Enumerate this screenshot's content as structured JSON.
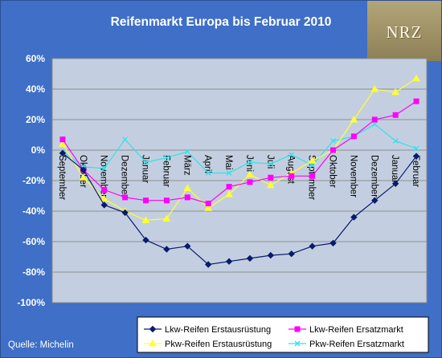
{
  "title": "Reifenmarkt Europa bis Februar 2010",
  "logo_text": "NRZ",
  "source": "Quelle: Michelin",
  "colors": {
    "background": "#3f6fc6",
    "plot_area": "#c3cfe0",
    "series": [
      "#0a1a6e",
      "#ff00ff",
      "#ffff33",
      "#33e0e8"
    ]
  },
  "chart_data": {
    "type": "line",
    "title": "Reifenmarkt Europa bis Februar 2010",
    "categories": [
      "September",
      "Oktober",
      "November",
      "Dezember",
      "Januar",
      "Februar",
      "März",
      "April",
      "Mai",
      "Juni",
      "Juli",
      "August",
      "September",
      "Oktober",
      "November",
      "Dezember",
      "Januar",
      "Februar"
    ],
    "y_ticks": [
      "60%",
      "40%",
      "20%",
      "0%",
      "-20%",
      "-40%",
      "-60%",
      "-80%",
      "-100%"
    ],
    "ylim": [
      -100,
      60
    ],
    "y_unit": "%",
    "grid": true,
    "legend_position": "bottom",
    "series": [
      {
        "name": "Lkw-Reifen Erstausrüstung",
        "marker": "diamond",
        "values": [
          -2,
          -13,
          -36,
          -41,
          -59,
          -65,
          -63,
          -75,
          -73,
          -71,
          -69,
          -68,
          -63,
          -61,
          -44,
          -33,
          -22,
          -4
        ]
      },
      {
        "name": "Lkw-Reifen Ersatzmarkt",
        "marker": "square",
        "values": [
          7,
          -13,
          -26,
          -31,
          -33,
          -33,
          -31,
          -35,
          -24,
          -21,
          -18,
          -17,
          -17,
          0,
          9,
          20,
          23,
          32
        ]
      },
      {
        "name": "Pkw-Reifen Erstausrüstung",
        "marker": "triangle",
        "values": [
          4,
          -18,
          -32,
          -40,
          -46,
          -45,
          -25,
          -38,
          -29,
          -16,
          -23,
          -15,
          -7,
          0,
          20,
          40,
          38,
          47
        ]
      },
      {
        "name": "Pkw-Reifen Ersatzmarkt",
        "marker": "x",
        "values": [
          -1,
          -11,
          -12,
          7,
          -8,
          -5,
          -1,
          -15,
          -15,
          -8,
          -9,
          -3,
          -10,
          6,
          9,
          17,
          6,
          1
        ]
      }
    ]
  }
}
